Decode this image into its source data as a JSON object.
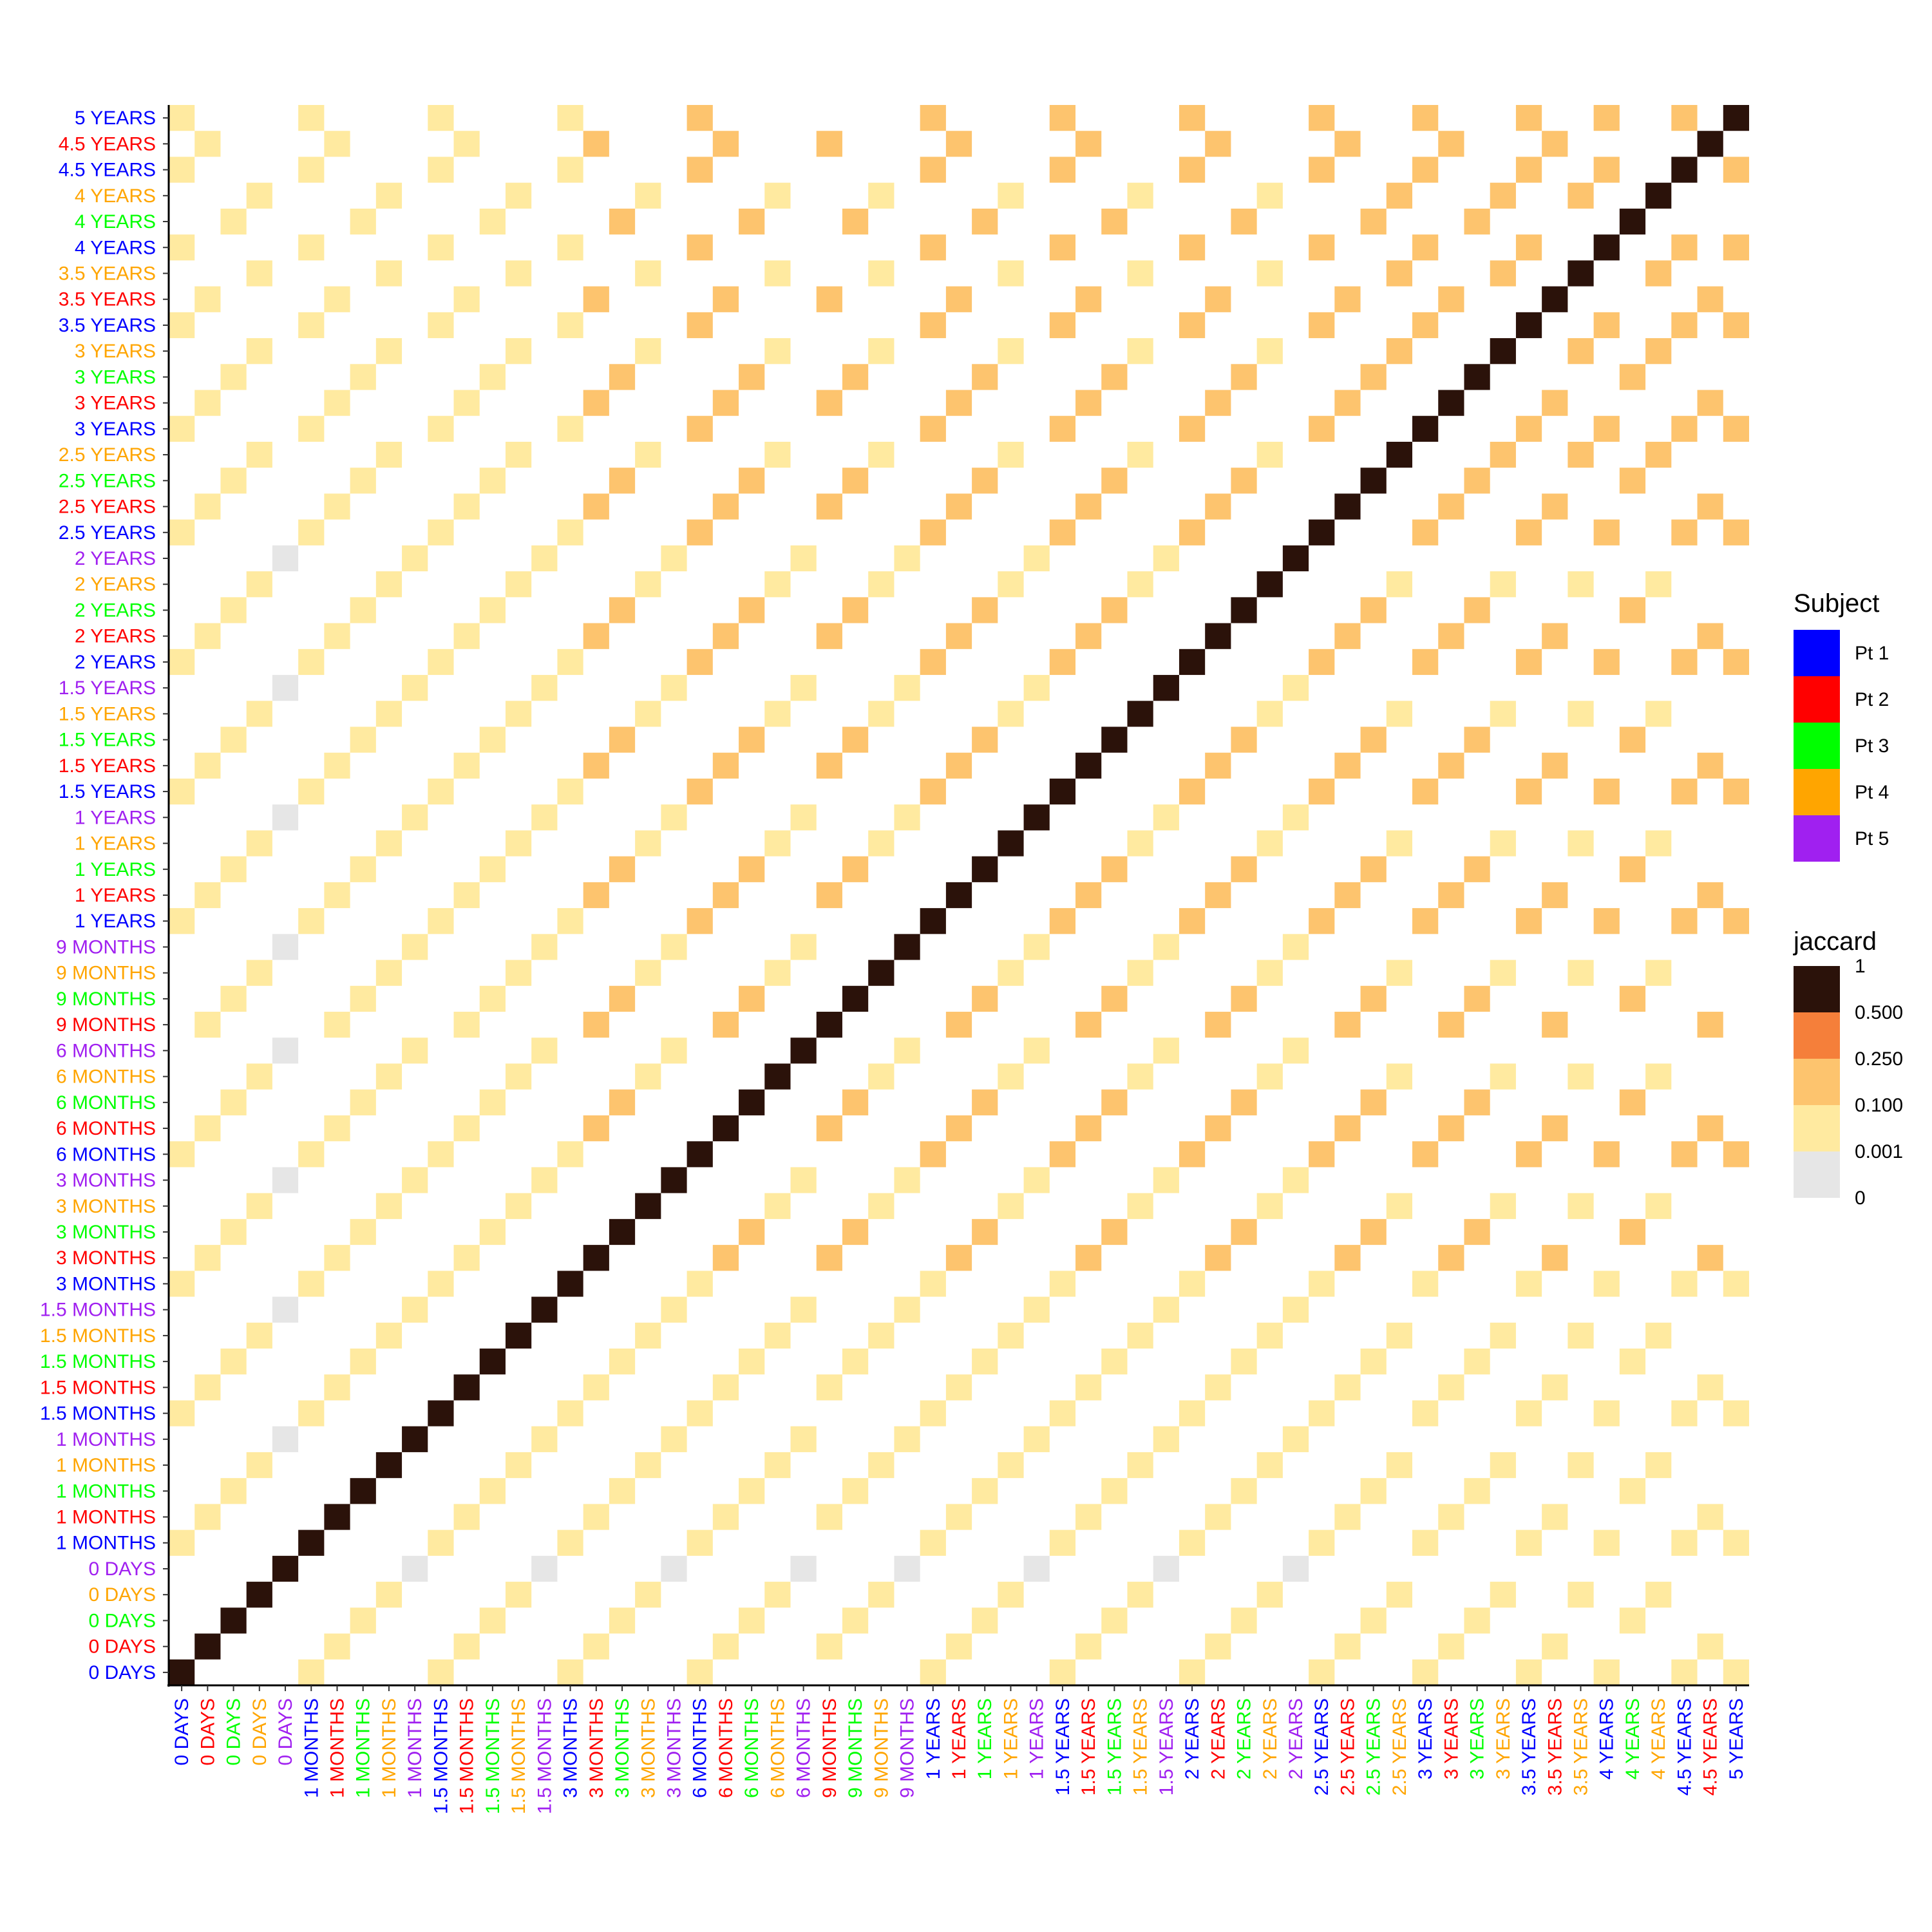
{
  "chart_data": {
    "type": "heatmap",
    "title": "",
    "xlabel": "",
    "ylabel": "",
    "timepoints": [
      "0 DAYS",
      "1 MONTHS",
      "1.5 MONTHS",
      "3 MONTHS",
      "6 MONTHS",
      "9 MONTHS",
      "1 YEARS",
      "1.5 YEARS",
      "2 YEARS",
      "2.5 YEARS",
      "3 YEARS",
      "3.5 YEARS",
      "4 YEARS",
      "4.5 YEARS",
      "5 YEARS"
    ],
    "samples": [
      {
        "label": "0 DAYS",
        "subject": "Pt 1"
      },
      {
        "label": "0 DAYS",
        "subject": "Pt 2"
      },
      {
        "label": "0 DAYS",
        "subject": "Pt 3"
      },
      {
        "label": "0 DAYS",
        "subject": "Pt 4"
      },
      {
        "label": "0 DAYS",
        "subject": "Pt 5"
      },
      {
        "label": "1 MONTHS",
        "subject": "Pt 1"
      },
      {
        "label": "1 MONTHS",
        "subject": "Pt 2"
      },
      {
        "label": "1 MONTHS",
        "subject": "Pt 3"
      },
      {
        "label": "1 MONTHS",
        "subject": "Pt 4"
      },
      {
        "label": "1 MONTHS",
        "subject": "Pt 5"
      },
      {
        "label": "1.5 MONTHS",
        "subject": "Pt 1"
      },
      {
        "label": "1.5 MONTHS",
        "subject": "Pt 2"
      },
      {
        "label": "1.5 MONTHS",
        "subject": "Pt 3"
      },
      {
        "label": "1.5 MONTHS",
        "subject": "Pt 4"
      },
      {
        "label": "1.5 MONTHS",
        "subject": "Pt 5"
      },
      {
        "label": "3 MONTHS",
        "subject": "Pt 1"
      },
      {
        "label": "3 MONTHS",
        "subject": "Pt 2"
      },
      {
        "label": "3 MONTHS",
        "subject": "Pt 3"
      },
      {
        "label": "3 MONTHS",
        "subject": "Pt 4"
      },
      {
        "label": "3 MONTHS",
        "subject": "Pt 5"
      },
      {
        "label": "6 MONTHS",
        "subject": "Pt 1"
      },
      {
        "label": "6 MONTHS",
        "subject": "Pt 2"
      },
      {
        "label": "6 MONTHS",
        "subject": "Pt 3"
      },
      {
        "label": "6 MONTHS",
        "subject": "Pt 4"
      },
      {
        "label": "6 MONTHS",
        "subject": "Pt 5"
      },
      {
        "label": "9 MONTHS",
        "subject": "Pt 2"
      },
      {
        "label": "9 MONTHS",
        "subject": "Pt 3"
      },
      {
        "label": "9 MONTHS",
        "subject": "Pt 4"
      },
      {
        "label": "9 MONTHS",
        "subject": "Pt 5"
      },
      {
        "label": "1 YEARS",
        "subject": "Pt 1"
      },
      {
        "label": "1 YEARS",
        "subject": "Pt 2"
      },
      {
        "label": "1 YEARS",
        "subject": "Pt 3"
      },
      {
        "label": "1 YEARS",
        "subject": "Pt 4"
      },
      {
        "label": "1 YEARS",
        "subject": "Pt 5"
      },
      {
        "label": "1.5 YEARS",
        "subject": "Pt 1"
      },
      {
        "label": "1.5 YEARS",
        "subject": "Pt 2"
      },
      {
        "label": "1.5 YEARS",
        "subject": "Pt 3"
      },
      {
        "label": "1.5 YEARS",
        "subject": "Pt 4"
      },
      {
        "label": "1.5 YEARS",
        "subject": "Pt 5"
      },
      {
        "label": "2 YEARS",
        "subject": "Pt 1"
      },
      {
        "label": "2 YEARS",
        "subject": "Pt 2"
      },
      {
        "label": "2 YEARS",
        "subject": "Pt 3"
      },
      {
        "label": "2 YEARS",
        "subject": "Pt 4"
      },
      {
        "label": "2 YEARS",
        "subject": "Pt 5"
      },
      {
        "label": "2.5 YEARS",
        "subject": "Pt 1"
      },
      {
        "label": "2.5 YEARS",
        "subject": "Pt 2"
      },
      {
        "label": "2.5 YEARS",
        "subject": "Pt 3"
      },
      {
        "label": "2.5 YEARS",
        "subject": "Pt 4"
      },
      {
        "label": "3 YEARS",
        "subject": "Pt 1"
      },
      {
        "label": "3 YEARS",
        "subject": "Pt 2"
      },
      {
        "label": "3 YEARS",
        "subject": "Pt 3"
      },
      {
        "label": "3 YEARS",
        "subject": "Pt 4"
      },
      {
        "label": "3.5 YEARS",
        "subject": "Pt 1"
      },
      {
        "label": "3.5 YEARS",
        "subject": "Pt 2"
      },
      {
        "label": "3.5 YEARS",
        "subject": "Pt 4"
      },
      {
        "label": "4 YEARS",
        "subject": "Pt 1"
      },
      {
        "label": "4 YEARS",
        "subject": "Pt 3"
      },
      {
        "label": "4 YEARS",
        "subject": "Pt 4"
      },
      {
        "label": "4.5 YEARS",
        "subject": "Pt 1"
      },
      {
        "label": "4.5 YEARS",
        "subject": "Pt 2"
      },
      {
        "label": "5 YEARS",
        "subject": "Pt 1"
      }
    ],
    "legend_subject": {
      "title": "Subject",
      "entries": [
        {
          "name": "Pt 1",
          "color": "#0000FF"
        },
        {
          "name": "Pt 2",
          "color": "#FF0000"
        },
        {
          "name": "Pt 3",
          "color": "#00FF00"
        },
        {
          "name": "Pt 4",
          "color": "#FFA500"
        },
        {
          "name": "Pt 5",
          "color": "#A020F0"
        }
      ]
    },
    "legend_jaccard": {
      "title": "jaccard",
      "bins": [
        {
          "label": "1",
          "color": "#2B120A"
        },
        {
          "label": "0.500",
          "color": "#F57F3A"
        },
        {
          "label": "0.250",
          "color": "#FDC46E"
        },
        {
          "label": "0.100",
          "color": "#FFEAA0"
        },
        {
          "label": "0.001",
          "color": "#E6E6E6"
        },
        {
          "label": "0",
          "color": "#FFFFFF"
        }
      ]
    },
    "value_rules": {
      "diagonal": 1,
      "different_subject": 0,
      "same_subject_default": 0.05,
      "same_subject_pt1_late": 0.3,
      "same_subject_pt2_pt3_late": 0.15,
      "same_subject_pt3_mid": 0.15,
      "pt1_late_threshold": "1.5 YEARS",
      "pt2_pt3_late_threshold": "2 YEARS",
      "pt1_late_lt_3years_vs_early": 0.05,
      "pt5_vs_pt5_early": 0.001
    },
    "legend_placement": "right"
  }
}
